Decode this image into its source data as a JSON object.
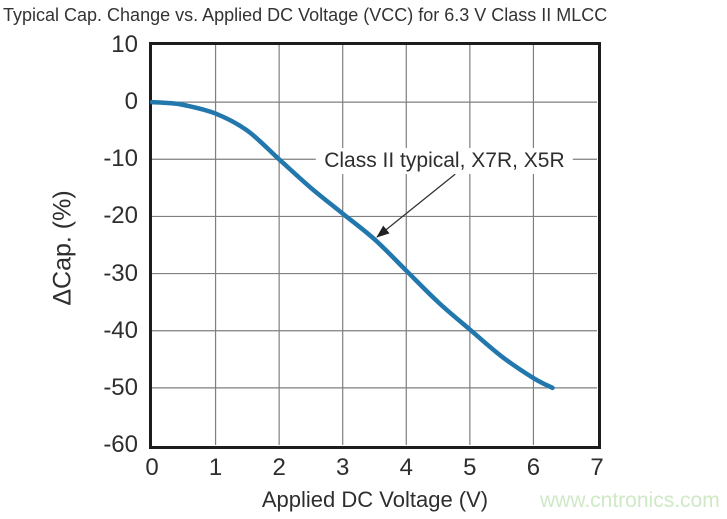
{
  "page": {
    "watermark": {
      "text": "www.cntronics.com",
      "color": "#cfe9c6"
    }
  },
  "chart_data": {
    "type": "line",
    "title": "Typical Cap. Change vs. Applied DC Voltage (VCC) for 6.3 V Class II MLCC",
    "xlabel": "Applied DC Voltage (V)",
    "ylabel": "ΔCap. (%)",
    "xlim": [
      0,
      7
    ],
    "ylim": [
      -60,
      10
    ],
    "xticks": [
      0,
      1,
      2,
      3,
      4,
      5,
      6,
      7
    ],
    "yticks": [
      10,
      0,
      -10,
      -20,
      -30,
      -40,
      -50,
      -60
    ],
    "grid": true,
    "grid_color": "#7f7f7f",
    "frame_color": "#1c1c1c",
    "series": [
      {
        "name": "Class II typical, X7R, X5R",
        "color": "#2277ad",
        "x": [
          0,
          0.25,
          0.5,
          1,
          1.5,
          2,
          2.5,
          3,
          3.5,
          4,
          4.5,
          5,
          5.5,
          6,
          6.3
        ],
        "y": [
          0,
          -0.15,
          -0.5,
          -2,
          -5,
          -10,
          -15,
          -19.5,
          -24,
          -29.5,
          -35,
          -39.8,
          -44.5,
          -48.3,
          -50
        ]
      }
    ],
    "annotation": {
      "label": "Class II typical, X7R, X5R",
      "label_v": 4.6,
      "label_pct": -10.3,
      "arrow_from_v": 4.77,
      "arrow_from_pct": -12.6,
      "arrow_to_v": 3.54,
      "arrow_to_pct": -23.6
    }
  }
}
